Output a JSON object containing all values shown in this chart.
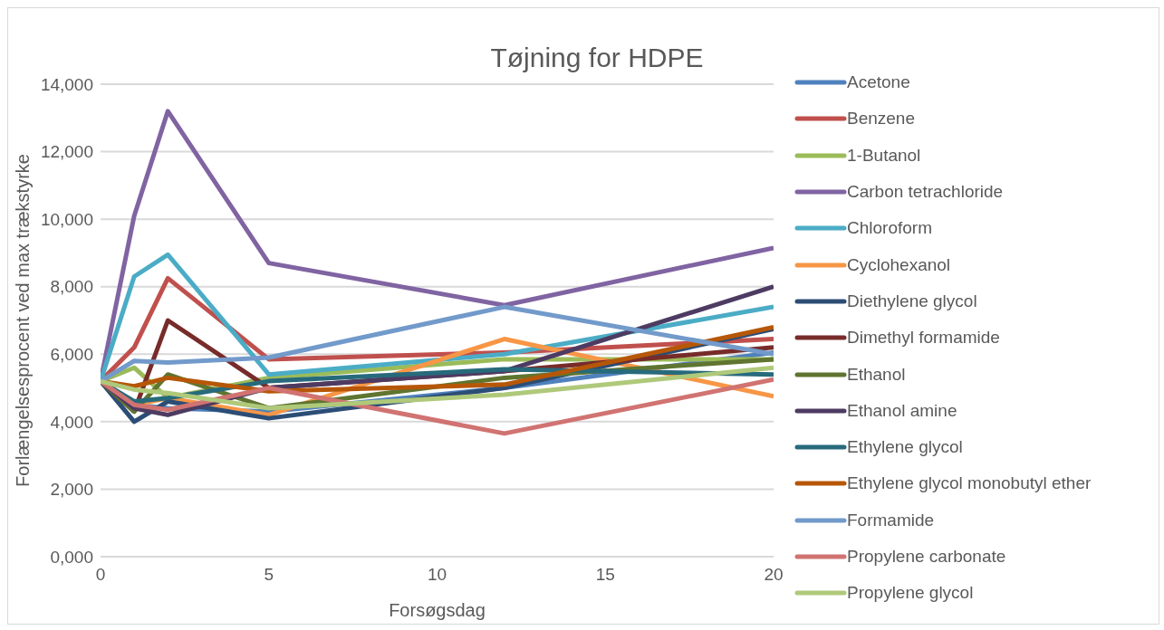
{
  "chart_data": {
    "type": "line",
    "title": "Tøjning for HDPE",
    "xlabel": "Forsøgsdag",
    "ylabel": "Forlængelsesprocent ved max trækstyrke",
    "x": [
      0,
      1,
      2,
      5,
      12,
      20
    ],
    "xlim": [
      0,
      20
    ],
    "xticks": [
      0,
      5,
      10,
      15,
      20
    ],
    "ylim": [
      0,
      14000
    ],
    "yticks": [
      {
        "value": 0,
        "label": "0,000"
      },
      {
        "value": 2000,
        "label": "2,000"
      },
      {
        "value": 4000,
        "label": "4,000"
      },
      {
        "value": 6000,
        "label": "6,000"
      },
      {
        "value": 8000,
        "label": "8,000"
      },
      {
        "value": 10000,
        "label": "10,000"
      },
      {
        "value": 12000,
        "label": "12,000"
      },
      {
        "value": 14000,
        "label": "14,000"
      }
    ],
    "grid": "y",
    "legend": "right",
    "marker": "none",
    "line_style": "solid",
    "series": [
      {
        "name": "Acetone",
        "color": "#4f81bd",
        "values": [
          5200,
          4500,
          4400,
          4300,
          5000,
          6050
        ]
      },
      {
        "name": "Benzene",
        "color": "#c0504d",
        "values": [
          5200,
          6200,
          8250,
          5850,
          6050,
          6450
        ]
      },
      {
        "name": "1-Butanol",
        "color": "#9bbb59",
        "values": [
          5200,
          5600,
          4700,
          5300,
          5850,
          5850
        ]
      },
      {
        "name": "Carbon tetrachloride",
        "color": "#8064a2",
        "values": [
          5200,
          10100,
          13200,
          8700,
          7450,
          9150
        ]
      },
      {
        "name": "Chloroform",
        "color": "#4bacc6",
        "values": [
          5200,
          8300,
          8950,
          5400,
          6000,
          7400
        ]
      },
      {
        "name": "Cyclohexanol",
        "color": "#f79646",
        "values": [
          5200,
          4500,
          4700,
          4200,
          6450,
          4750
        ]
      },
      {
        "name": "Diethylene glycol",
        "color": "#2c4d75",
        "values": [
          5200,
          4000,
          4600,
          4100,
          5000,
          6750
        ]
      },
      {
        "name": "Dimethyl formamide",
        "color": "#772c2a",
        "values": [
          5200,
          4300,
          7000,
          5000,
          5500,
          6200
        ]
      },
      {
        "name": "Ethanol",
        "color": "#5f7530",
        "values": [
          5200,
          4300,
          5400,
          4400,
          5300,
          5850
        ]
      },
      {
        "name": "Ethanol amine",
        "color": "#4d3b62",
        "values": [
          5200,
          4400,
          4200,
          5000,
          5500,
          8000
        ]
      },
      {
        "name": "Ethylene glycol",
        "color": "#276a7c",
        "values": [
          5200,
          4600,
          4700,
          5200,
          5550,
          5400
        ]
      },
      {
        "name": "Ethylene glycol monobutyl ether",
        "color": "#b65708",
        "values": [
          5200,
          5050,
          5300,
          4900,
          5100,
          6800
        ]
      },
      {
        "name": "Formamide",
        "color": "#729aca",
        "values": [
          5200,
          5800,
          5750,
          5900,
          7400,
          6000
        ]
      },
      {
        "name": "Propylene carbonate",
        "color": "#d07371",
        "values": [
          5200,
          4500,
          4350,
          5000,
          3650,
          5250
        ]
      },
      {
        "name": "Propylene glycol",
        "color": "#afc97a",
        "values": [
          5200,
          4950,
          4850,
          4400,
          4800,
          5600
        ]
      }
    ]
  }
}
